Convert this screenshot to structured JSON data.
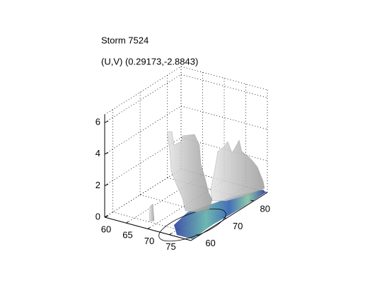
{
  "chart_data": {
    "type": "isosurface3d",
    "title": "Storm 7524",
    "subtitle": "(U,V) (0.29173,-2.8843)",
    "xlim": [
      60,
      80
    ],
    "xticks": [
      60,
      65,
      70,
      75
    ],
    "ylim": [
      57,
      85
    ],
    "yticks": [
      60,
      70,
      80
    ],
    "zlim": [
      0,
      6.5
    ],
    "zticks": [
      0,
      2,
      4,
      6
    ],
    "grid": true,
    "surface_color": "#c8c8c8",
    "floor_color": "#3fa0a0"
  }
}
